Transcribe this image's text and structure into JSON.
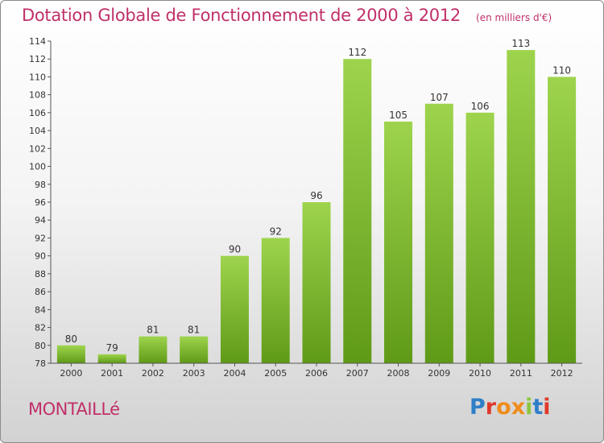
{
  "header": {
    "title": "Dotation Globale de Fonctionnement de 2000 à 2012",
    "subtitle": "(en milliers d'€)"
  },
  "footer": {
    "commune": "MONTAILLé",
    "logo_text": "Proxiti",
    "logo_letters": [
      "P",
      "r",
      "o",
      "x",
      "i",
      "t",
      "i"
    ],
    "logo_colors": [
      "#2f7fc8",
      "#e03a2a",
      "#f08c1a",
      "#f08c1a",
      "#8cc63f",
      "#2f7fc8",
      "#e03a2a"
    ]
  },
  "chart_data": {
    "type": "bar",
    "title": "Dotation Globale de Fonctionnement de 2000 à 2012",
    "subtitle": "(en milliers d'€)",
    "categories": [
      "2000",
      "2001",
      "2002",
      "2003",
      "2004",
      "2005",
      "2006",
      "2007",
      "2008",
      "2009",
      "2010",
      "2011",
      "2012"
    ],
    "values": [
      80,
      79,
      81,
      81,
      90,
      92,
      96,
      112,
      105,
      107,
      106,
      113,
      110
    ],
    "ylim": [
      78,
      114
    ],
    "yticks": [
      78,
      80,
      82,
      84,
      86,
      88,
      90,
      92,
      94,
      96,
      98,
      100,
      102,
      104,
      106,
      108,
      110,
      112,
      114
    ],
    "grid": false,
    "legend": "none",
    "colors": {
      "bar_top": "#9ed44d",
      "bar_bottom": "#5f9a17",
      "text": "#c0306a"
    }
  }
}
